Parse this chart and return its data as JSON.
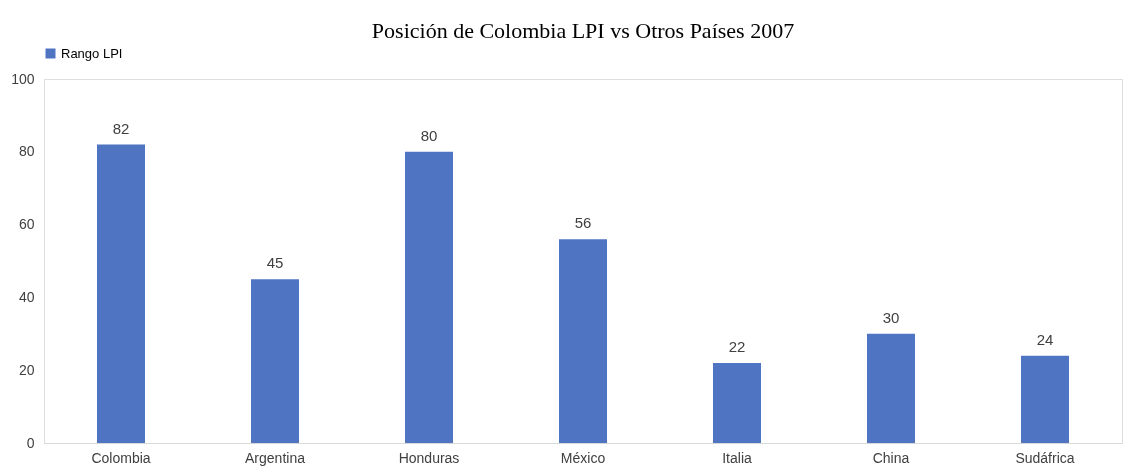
{
  "chart_data": {
    "type": "bar",
    "title": "Posición de Colombia LPI vs Otros Países 2007",
    "categories": [
      "Colombia",
      "Argentina",
      "Honduras",
      "México",
      "Italia",
      "China",
      "Sudáfrica"
    ],
    "series": [
      {
        "name": "Rango LPI",
        "color": "#4f74c2",
        "values": [
          82,
          45,
          80,
          56,
          22,
          30,
          24
        ]
      }
    ],
    "ylim": [
      0,
      100
    ],
    "yticks": [
      0,
      20,
      40,
      60,
      80,
      100
    ],
    "grid": false,
    "legend": "top",
    "data_labels": true
  }
}
